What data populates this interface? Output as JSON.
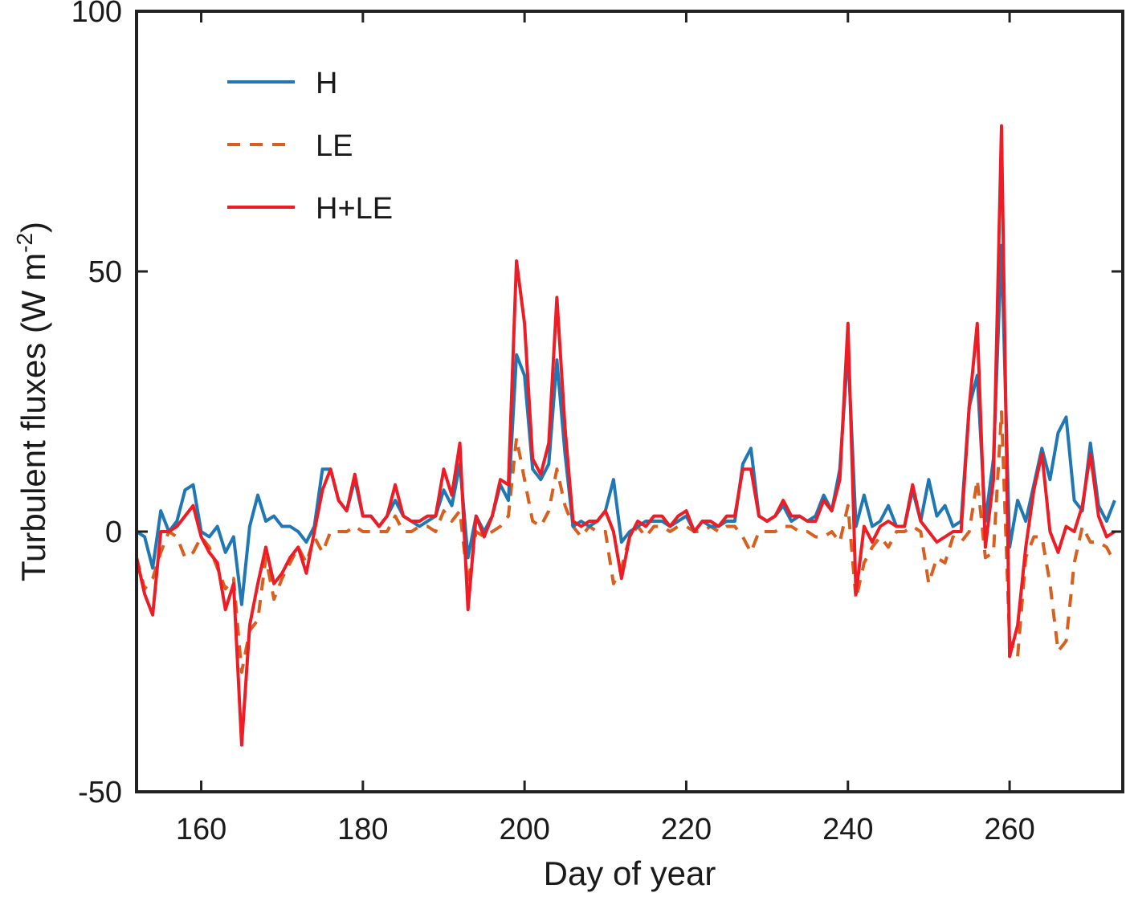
{
  "chart_data": {
    "type": "line",
    "title": "",
    "xlabel": "Day of year",
    "ylabel": "Turbulent fluxes (W m",
    "ylabel_unit_sup": "-2",
    "ylabel_close": ")",
    "xlim": [
      152,
      274
    ],
    "ylim": [
      -50,
      100
    ],
    "xticks": [
      160,
      180,
      200,
      220,
      240,
      260
    ],
    "yticks": [
      -50,
      0,
      50,
      100
    ],
    "xtick_labels": [
      "160",
      "180",
      "200",
      "220",
      "240",
      "260"
    ],
    "ytick_labels": [
      "-50",
      "0",
      "50",
      "100"
    ],
    "grid": false,
    "legend_position": "top-left",
    "x_start": 152,
    "series": [
      {
        "name": "H",
        "color": "#1f77b4",
        "style": "solid",
        "values": [
          0,
          -1,
          -7,
          4,
          0,
          2,
          8,
          9,
          0,
          -1,
          1,
          -4,
          -1,
          -14,
          1,
          7,
          2,
          3,
          1,
          1,
          0,
          -2,
          1,
          12,
          12,
          6,
          4,
          10,
          3,
          3,
          1,
          3,
          6,
          3,
          2,
          1,
          2,
          3,
          8,
          5,
          13,
          -5,
          3,
          0,
          3,
          9,
          6,
          34,
          30,
          12,
          10,
          13,
          33,
          15,
          1,
          2,
          1,
          2,
          4,
          10,
          -2,
          0,
          1,
          2,
          2,
          2,
          1,
          2,
          3,
          0,
          2,
          1,
          1,
          2,
          2,
          13,
          16,
          3,
          2,
          3,
          5,
          2,
          3,
          2,
          3,
          7,
          4,
          12,
          35,
          1,
          7,
          1,
          2,
          5,
          1,
          1,
          8,
          2,
          10,
          3,
          5,
          1,
          2,
          24,
          30,
          2,
          14,
          55,
          -3,
          6,
          2,
          9,
          16,
          10,
          19,
          22,
          6,
          4,
          17,
          5,
          2,
          6
        ]
      },
      {
        "name": "LE",
        "color": "#d95f1e",
        "style": "dashed",
        "values": [
          -5,
          -11,
          -9,
          -4,
          0,
          -1,
          -5,
          -4,
          -1,
          -3,
          -7,
          -11,
          -9,
          -27,
          -19,
          -17,
          -5,
          -13,
          -9,
          -6,
          -3,
          -6,
          -1,
          -4,
          0,
          0,
          0,
          1,
          0,
          0,
          0,
          0,
          3,
          0,
          0,
          1,
          1,
          0,
          4,
          2,
          4,
          -10,
          0,
          -1,
          0,
          1,
          3,
          18,
          10,
          2,
          1,
          4,
          12,
          5,
          1,
          -1,
          1,
          0,
          0,
          -10,
          -7,
          -1,
          1,
          -1,
          1,
          1,
          0,
          1,
          1,
          0,
          0,
          1,
          0,
          1,
          1,
          -1,
          -4,
          0,
          0,
          0,
          1,
          1,
          0,
          0,
          -1,
          -1,
          0,
          -2,
          5,
          -13,
          -6,
          -3,
          -1,
          -3,
          0,
          0,
          1,
          0,
          -10,
          -5,
          -6,
          -1,
          -2,
          0,
          10,
          -5,
          -4,
          23,
          -21,
          -24,
          -5,
          -1,
          -1,
          -10,
          -23,
          -21,
          -6,
          1,
          -2,
          -2,
          -3,
          -6
        ]
      },
      {
        "name": "H+LE",
        "color": "#ee1c25",
        "style": "solid",
        "values": [
          -5,
          -12,
          -16,
          0,
          0,
          1,
          3,
          5,
          -1,
          -4,
          -6,
          -15,
          -10,
          -41,
          -18,
          -10,
          -3,
          -10,
          -8,
          -5,
          -3,
          -8,
          0,
          8,
          12,
          6,
          4,
          11,
          3,
          3,
          1,
          3,
          9,
          3,
          2,
          2,
          3,
          3,
          12,
          7,
          17,
          -15,
          3,
          -1,
          3,
          10,
          9,
          52,
          40,
          14,
          11,
          17,
          45,
          20,
          2,
          1,
          2,
          2,
          4,
          0,
          -9,
          -1,
          2,
          1,
          3,
          3,
          1,
          3,
          4,
          0,
          2,
          2,
          1,
          3,
          3,
          12,
          12,
          3,
          2,
          3,
          6,
          3,
          3,
          2,
          2,
          6,
          4,
          10,
          40,
          -12,
          1,
          -2,
          1,
          2,
          1,
          1,
          9,
          2,
          0,
          -2,
          -1,
          0,
          0,
          24,
          40,
          -3,
          10,
          78,
          -24,
          -18,
          -3,
          8,
          15,
          0,
          -4,
          1,
          0,
          5,
          15,
          3,
          -1,
          0
        ]
      }
    ]
  }
}
